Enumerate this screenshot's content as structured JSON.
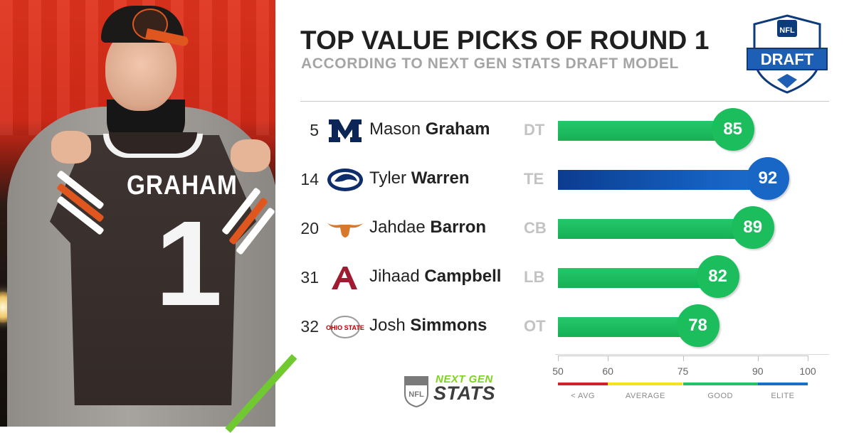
{
  "header": {
    "title": "TOP VALUE PICKS OF ROUND 1",
    "subtitle": "ACCORDING TO NEXT GEN STATS DRAFT MODEL"
  },
  "photo": {
    "jersey_name": "GRAHAM",
    "jersey_number": "1"
  },
  "logos": {
    "nfl_draft_top": "NFL",
    "nfl_draft_bottom": "DRAFT",
    "ngs_next": "NEXT GEN",
    "ngs_stats": "STATS",
    "ngs_nfl": "NFL"
  },
  "colors": {
    "good": "#1bbd5d",
    "elite": "#1867c6",
    "below_avg": "#d0212b",
    "average": "#f5e21e",
    "good_scale": "#22c16a",
    "elite_scale": "#1a6fc8"
  },
  "chart_data": {
    "type": "bar",
    "orientation": "horizontal",
    "title": "TOP VALUE PICKS OF ROUND 1",
    "subtitle": "ACCORDING TO NEXT GEN STATS DRAFT MODEL",
    "xlim": [
      50,
      100
    ],
    "xticks": [
      50,
      60,
      75,
      90,
      100
    ],
    "categories": [
      {
        "pick": "5",
        "first": "Mason",
        "last": "Graham",
        "pos": "DT",
        "school_icon": "michigan-logo-icon",
        "value": 85,
        "tier": "good"
      },
      {
        "pick": "14",
        "first": "Tyler",
        "last": "Warren",
        "pos": "TE",
        "school_icon": "penn-state-logo-icon",
        "value": 92,
        "tier": "elite"
      },
      {
        "pick": "20",
        "first": "Jahdae",
        "last": "Barron",
        "pos": "CB",
        "school_icon": "texas-longhorn-logo-icon",
        "value": 89,
        "tier": "good"
      },
      {
        "pick": "31",
        "first": "Jihaad",
        "last": "Campbell",
        "pos": "LB",
        "school_icon": "alabama-logo-icon",
        "value": 82,
        "tier": "good"
      },
      {
        "pick": "32",
        "first": "Josh",
        "last": "Simmons",
        "pos": "OT",
        "school_icon": "ohio-state-logo-icon",
        "value": 78,
        "tier": "good"
      }
    ],
    "scale_bands": [
      {
        "label": "< AVG",
        "from": 50,
        "to": 60,
        "color": "#d0212b"
      },
      {
        "label": "AVERAGE",
        "from": 60,
        "to": 75,
        "color": "#f5e21e"
      },
      {
        "label": "GOOD",
        "from": 75,
        "to": 90,
        "color": "#22c16a"
      },
      {
        "label": "ELITE",
        "from": 90,
        "to": 100,
        "color": "#1a6fc8"
      }
    ]
  }
}
